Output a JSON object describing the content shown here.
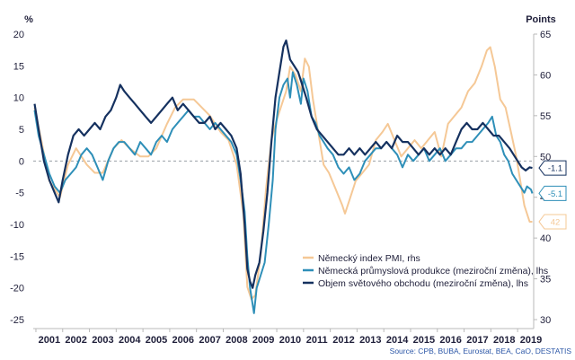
{
  "chart_data": {
    "type": "line",
    "left_axis": {
      "label": "%",
      "ylim": [
        -25,
        20
      ],
      "ticks": [
        20,
        15,
        10,
        5,
        0,
        -5,
        -10,
        -15,
        -20,
        -25
      ]
    },
    "right_axis": {
      "label": "Points",
      "ylim": [
        30,
        65
      ],
      "ticks": [
        65,
        60,
        55,
        50,
        45,
        40,
        35,
        30
      ]
    },
    "x_ticks": [
      "2001",
      "2002",
      "2003",
      "2004",
      "2005",
      "2006",
      "2007",
      "2008",
      "2009",
      "2010",
      "2011",
      "2012",
      "2013",
      "2014",
      "2015",
      "2016",
      "2017",
      "2018",
      "2019"
    ],
    "x_range": [
      2000.9,
      2019.6
    ],
    "reference_line": 0,
    "legend": [
      "Německý index PMI, rhs",
      "Německá průmyslová produkce (meziroční změna), lhs",
      "Objem světového obchodu (meziroční změna), lhs"
    ],
    "series": [
      {
        "name": "Německý index PMI, rhs",
        "axis": "right",
        "color": "#f5c896",
        "end_label": "42",
        "points": [
          [
            2000.95,
            56
          ],
          [
            2001.2,
            52
          ],
          [
            2001.5,
            47
          ],
          [
            2001.9,
            45
          ],
          [
            2002.2,
            49
          ],
          [
            2002.5,
            51
          ],
          [
            2002.9,
            49
          ],
          [
            2003.2,
            48
          ],
          [
            2003.5,
            48
          ],
          [
            2003.9,
            51
          ],
          [
            2004.2,
            52
          ],
          [
            2004.5,
            51
          ],
          [
            2004.9,
            50
          ],
          [
            2005.2,
            50
          ],
          [
            2005.5,
            51
          ],
          [
            2005.9,
            54
          ],
          [
            2006.2,
            56
          ],
          [
            2006.5,
            57
          ],
          [
            2006.9,
            57
          ],
          [
            2007.2,
            56
          ],
          [
            2007.5,
            55
          ],
          [
            2007.9,
            53
          ],
          [
            2008.2,
            52
          ],
          [
            2008.5,
            49
          ],
          [
            2008.75,
            43
          ],
          [
            2008.9,
            34
          ],
          [
            2009.05,
            32.5
          ],
          [
            2009.2,
            33
          ],
          [
            2009.4,
            38
          ],
          [
            2009.6,
            46
          ],
          [
            2009.8,
            52
          ],
          [
            2009.95,
            54
          ],
          [
            2010.15,
            56
          ],
          [
            2010.35,
            58
          ],
          [
            2010.5,
            61
          ],
          [
            2010.7,
            60
          ],
          [
            2010.9,
            58
          ],
          [
            2011.05,
            62
          ],
          [
            2011.2,
            61
          ],
          [
            2011.35,
            57
          ],
          [
            2011.55,
            53
          ],
          [
            2011.75,
            49
          ],
          [
            2011.95,
            48
          ],
          [
            2012.2,
            46
          ],
          [
            2012.45,
            44
          ],
          [
            2012.55,
            43
          ],
          [
            2012.75,
            45
          ],
          [
            2012.95,
            47
          ],
          [
            2013.2,
            48
          ],
          [
            2013.45,
            49
          ],
          [
            2013.7,
            52
          ],
          [
            2013.95,
            53
          ],
          [
            2014.15,
            54
          ],
          [
            2014.4,
            52
          ],
          [
            2014.65,
            50
          ],
          [
            2014.9,
            51
          ],
          [
            2015.15,
            52
          ],
          [
            2015.4,
            51
          ],
          [
            2015.65,
            52
          ],
          [
            2015.9,
            53
          ],
          [
            2016.15,
            50
          ],
          [
            2016.4,
            54
          ],
          [
            2016.65,
            55
          ],
          [
            2016.9,
            56
          ],
          [
            2017.15,
            58
          ],
          [
            2017.4,
            59
          ],
          [
            2017.65,
            61
          ],
          [
            2017.85,
            63
          ],
          [
            2017.98,
            63.4
          ],
          [
            2018.15,
            61
          ],
          [
            2018.35,
            57
          ],
          [
            2018.55,
            56
          ],
          [
            2018.75,
            53
          ],
          [
            2018.95,
            50
          ],
          [
            2019.1,
            47
          ],
          [
            2019.25,
            44
          ],
          [
            2019.45,
            42
          ],
          [
            2019.55,
            42
          ]
        ]
      },
      {
        "name": "Německá průmyslová produkce (meziroční změna), lhs",
        "axis": "left",
        "color": "#2e8fb8",
        "end_label": "-5.1",
        "points": [
          [
            2000.95,
            8
          ],
          [
            2001.1,
            4
          ],
          [
            2001.3,
            1
          ],
          [
            2001.5,
            -2
          ],
          [
            2001.7,
            -4
          ],
          [
            2001.9,
            -5
          ],
          [
            2002.1,
            -3
          ],
          [
            2002.3,
            -2
          ],
          [
            2002.5,
            -1
          ],
          [
            2002.7,
            1
          ],
          [
            2002.9,
            2
          ],
          [
            2003.1,
            1
          ],
          [
            2003.3,
            -1
          ],
          [
            2003.5,
            -3
          ],
          [
            2003.7,
            0
          ],
          [
            2003.9,
            2
          ],
          [
            2004.1,
            3
          ],
          [
            2004.3,
            3
          ],
          [
            2004.5,
            2
          ],
          [
            2004.7,
            1
          ],
          [
            2004.9,
            3
          ],
          [
            2005.1,
            2
          ],
          [
            2005.3,
            1
          ],
          [
            2005.5,
            3
          ],
          [
            2005.7,
            4
          ],
          [
            2005.9,
            3
          ],
          [
            2006.1,
            5
          ],
          [
            2006.3,
            6
          ],
          [
            2006.5,
            7
          ],
          [
            2006.7,
            8
          ],
          [
            2006.9,
            7
          ],
          [
            2007.1,
            7
          ],
          [
            2007.3,
            6
          ],
          [
            2007.5,
            5
          ],
          [
            2007.7,
            6
          ],
          [
            2007.9,
            5
          ],
          [
            2008.1,
            4
          ],
          [
            2008.3,
            3
          ],
          [
            2008.5,
            1
          ],
          [
            2008.65,
            -3
          ],
          [
            2008.8,
            -8
          ],
          [
            2008.9,
            -15
          ],
          [
            2009.0,
            -20
          ],
          [
            2009.15,
            -24
          ],
          [
            2009.25,
            -20
          ],
          [
            2009.4,
            -18
          ],
          [
            2009.55,
            -16
          ],
          [
            2009.7,
            -10
          ],
          [
            2009.85,
            -3
          ],
          [
            2009.95,
            5
          ],
          [
            2010.1,
            10
          ],
          [
            2010.25,
            12
          ],
          [
            2010.4,
            13
          ],
          [
            2010.5,
            10
          ],
          [
            2010.6,
            14
          ],
          [
            2010.75,
            12
          ],
          [
            2010.9,
            9
          ],
          [
            2011.0,
            13
          ],
          [
            2011.15,
            11
          ],
          [
            2011.3,
            7
          ],
          [
            2011.45,
            6
          ],
          [
            2011.6,
            4
          ],
          [
            2011.75,
            3
          ],
          [
            2011.9,
            2
          ],
          [
            2012.1,
            1
          ],
          [
            2012.3,
            -1
          ],
          [
            2012.5,
            -2
          ],
          [
            2012.7,
            -1
          ],
          [
            2012.9,
            -3
          ],
          [
            2013.1,
            -2
          ],
          [
            2013.3,
            0
          ],
          [
            2013.5,
            1
          ],
          [
            2013.7,
            2
          ],
          [
            2013.9,
            2
          ],
          [
            2014.1,
            3
          ],
          [
            2014.3,
            2
          ],
          [
            2014.5,
            1
          ],
          [
            2014.7,
            -1
          ],
          [
            2014.9,
            1
          ],
          [
            2015.1,
            0
          ],
          [
            2015.3,
            1
          ],
          [
            2015.5,
            2
          ],
          [
            2015.7,
            0
          ],
          [
            2015.9,
            1
          ],
          [
            2016.1,
            2
          ],
          [
            2016.3,
            0
          ],
          [
            2016.5,
            1
          ],
          [
            2016.7,
            2
          ],
          [
            2016.9,
            2
          ],
          [
            2017.1,
            3
          ],
          [
            2017.3,
            3
          ],
          [
            2017.5,
            4
          ],
          [
            2017.7,
            5
          ],
          [
            2017.9,
            6
          ],
          [
            2018.05,
            7
          ],
          [
            2018.2,
            4
          ],
          [
            2018.35,
            3
          ],
          [
            2018.5,
            1
          ],
          [
            2018.65,
            0
          ],
          [
            2018.8,
            -2
          ],
          [
            2018.95,
            -3
          ],
          [
            2019.1,
            -4
          ],
          [
            2019.25,
            -5
          ],
          [
            2019.35,
            -4
          ],
          [
            2019.5,
            -4.5
          ],
          [
            2019.55,
            -5.1
          ]
        ]
      },
      {
        "name": "Objem světového obchodu (meziroční změna), lhs",
        "axis": "left",
        "color": "#15315f",
        "end_label": "-1.1",
        "points": [
          [
            2000.95,
            9
          ],
          [
            2001.1,
            5
          ],
          [
            2001.3,
            0
          ],
          [
            2001.5,
            -3
          ],
          [
            2001.7,
            -5
          ],
          [
            2001.85,
            -6.5
          ],
          [
            2002.0,
            -3
          ],
          [
            2002.2,
            1
          ],
          [
            2002.4,
            4
          ],
          [
            2002.6,
            5
          ],
          [
            2002.8,
            4
          ],
          [
            2003.0,
            5
          ],
          [
            2003.2,
            6
          ],
          [
            2003.4,
            5
          ],
          [
            2003.6,
            7
          ],
          [
            2003.8,
            8
          ],
          [
            2004.0,
            10
          ],
          [
            2004.15,
            12
          ],
          [
            2004.3,
            11
          ],
          [
            2004.5,
            10
          ],
          [
            2004.7,
            9
          ],
          [
            2004.9,
            8
          ],
          [
            2005.1,
            7
          ],
          [
            2005.3,
            6
          ],
          [
            2005.5,
            7
          ],
          [
            2005.7,
            8
          ],
          [
            2005.9,
            9
          ],
          [
            2006.1,
            10
          ],
          [
            2006.3,
            8
          ],
          [
            2006.5,
            9
          ],
          [
            2006.7,
            8
          ],
          [
            2006.9,
            7
          ],
          [
            2007.1,
            6
          ],
          [
            2007.3,
            6
          ],
          [
            2007.5,
            7
          ],
          [
            2007.7,
            5
          ],
          [
            2007.9,
            6
          ],
          [
            2008.1,
            5
          ],
          [
            2008.3,
            4
          ],
          [
            2008.5,
            2
          ],
          [
            2008.65,
            -2
          ],
          [
            2008.8,
            -10
          ],
          [
            2008.9,
            -17
          ],
          [
            2009.0,
            -19
          ],
          [
            2009.1,
            -20
          ],
          [
            2009.2,
            -18
          ],
          [
            2009.35,
            -16
          ],
          [
            2009.5,
            -11
          ],
          [
            2009.65,
            -5
          ],
          [
            2009.8,
            3
          ],
          [
            2009.95,
            10
          ],
          [
            2010.1,
            14
          ],
          [
            2010.25,
            18
          ],
          [
            2010.35,
            19
          ],
          [
            2010.5,
            16
          ],
          [
            2010.65,
            15
          ],
          [
            2010.8,
            14
          ],
          [
            2010.95,
            12
          ],
          [
            2011.1,
            10
          ],
          [
            2011.3,
            7
          ],
          [
            2011.5,
            5
          ],
          [
            2011.7,
            4
          ],
          [
            2011.9,
            3
          ],
          [
            2012.1,
            2
          ],
          [
            2012.3,
            1
          ],
          [
            2012.5,
            1
          ],
          [
            2012.7,
            2
          ],
          [
            2012.9,
            1
          ],
          [
            2013.1,
            2
          ],
          [
            2013.3,
            1
          ],
          [
            2013.5,
            2
          ],
          [
            2013.7,
            3
          ],
          [
            2013.9,
            2
          ],
          [
            2014.1,
            3
          ],
          [
            2014.3,
            2
          ],
          [
            2014.5,
            4
          ],
          [
            2014.7,
            3
          ],
          [
            2014.9,
            3
          ],
          [
            2015.1,
            2
          ],
          [
            2015.3,
            1
          ],
          [
            2015.5,
            2
          ],
          [
            2015.7,
            1
          ],
          [
            2015.9,
            2
          ],
          [
            2016.1,
            1
          ],
          [
            2016.3,
            2
          ],
          [
            2016.5,
            1
          ],
          [
            2016.7,
            3
          ],
          [
            2016.9,
            5
          ],
          [
            2017.1,
            6
          ],
          [
            2017.3,
            5
          ],
          [
            2017.5,
            5
          ],
          [
            2017.7,
            6
          ],
          [
            2017.9,
            5
          ],
          [
            2018.1,
            4
          ],
          [
            2018.3,
            4
          ],
          [
            2018.5,
            3
          ],
          [
            2018.7,
            2
          ],
          [
            2018.85,
            1
          ],
          [
            2019.0,
            0
          ],
          [
            2019.15,
            -1
          ],
          [
            2019.3,
            -1.5
          ],
          [
            2019.45,
            -1
          ],
          [
            2019.55,
            -1.1
          ]
        ]
      }
    ],
    "source": "Source: CPB, BUBA, Eurostat, BEA, CaO, DESTATIS"
  }
}
